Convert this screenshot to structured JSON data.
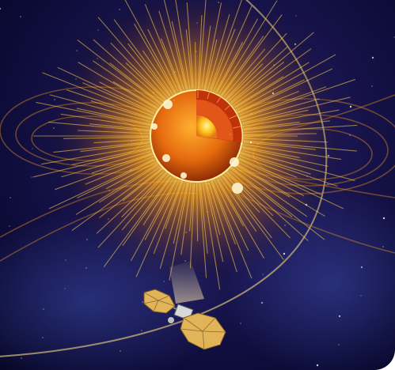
{
  "scene": {
    "subject": "sun-cutaway-with-spacecraft",
    "colors": {
      "space_dark": "#0c0b36",
      "space_mid": "#24245e",
      "corona": "#ffb21a",
      "sun_surface": "#f07a10",
      "core": "#ffd54a",
      "orbit_line": "#c9b27a",
      "solar_panel": "#e2b45a"
    }
  }
}
